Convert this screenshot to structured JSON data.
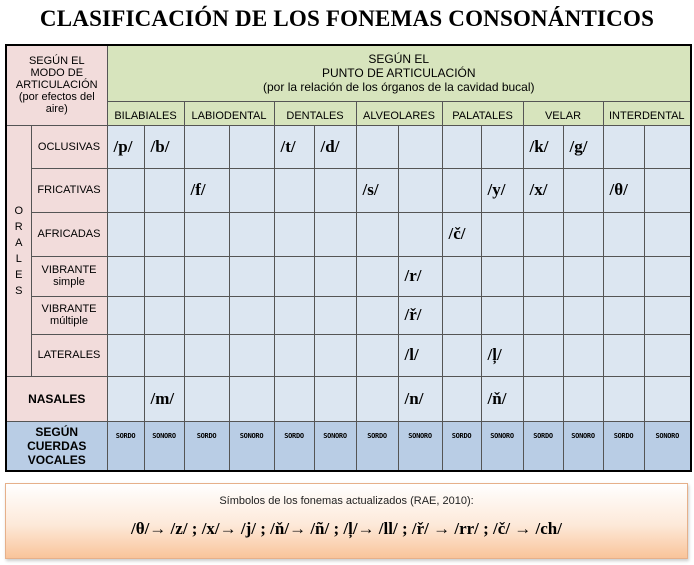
{
  "title": "CLASIFICACIÓN DE LOS FONEMAS CONSONÁNTICOS",
  "header": {
    "mode_label": [
      "SEGÚN EL",
      "MODO DE",
      "ARTICULACIÓN",
      "(por efectos del",
      "aire)"
    ],
    "place_label": [
      "SEGÚN EL",
      "PUNTO DE ARTICULACIÓN",
      "(por la relación de los órganos de la cavidad bucal)"
    ],
    "places": [
      "BILABIALES",
      "LABIODENTAL",
      "DENTALES",
      "ALVEOLARES",
      "PALATALES",
      "VELAR",
      "INTERDENTAL"
    ]
  },
  "orales_label": "O R A L E S",
  "rows": [
    {
      "label": "OCLUSIVAS",
      "cells": [
        "/p/",
        "/b/",
        "",
        "",
        "/t/",
        "/d/",
        "",
        "",
        "",
        "",
        "/k/",
        "/g/",
        "",
        ""
      ]
    },
    {
      "label": "FRICATIVAS",
      "cells": [
        "",
        "",
        "/f/",
        "",
        "",
        "",
        "/s/",
        "",
        "",
        "/y/",
        "/x/",
        "",
        "/θ/",
        ""
      ]
    },
    {
      "label": "AFRICADAS",
      "cells": [
        "",
        "",
        "",
        "",
        "",
        "",
        "",
        "",
        "/č/",
        "",
        "",
        "",
        "",
        ""
      ]
    },
    {
      "label": "VIBRANTE",
      "sublabel": "simple",
      "cells": [
        "",
        "",
        "",
        "",
        "",
        "",
        "",
        "/r/",
        "",
        "",
        "",
        "",
        "",
        ""
      ]
    },
    {
      "label": "VIBRANTE",
      "sublabel": "múltiple",
      "cells": [
        "",
        "",
        "",
        "",
        "",
        "",
        "",
        "/ř/",
        "",
        "",
        "",
        "",
        "",
        ""
      ]
    },
    {
      "label": "LATERALES",
      "cells": [
        "",
        "",
        "",
        "",
        "",
        "",
        "",
        "/l/",
        "",
        "/ļ/",
        "",
        "",
        "",
        ""
      ]
    }
  ],
  "nasales": {
    "label": "NASALES",
    "cells": [
      "",
      "/m/",
      "",
      "",
      "",
      "",
      "",
      "/n/",
      "",
      "/ň/",
      "",
      "",
      "",
      ""
    ]
  },
  "sonoridad": {
    "label": [
      "SEGÚN",
      "CUERDAS",
      "VOCALES"
    ],
    "cells": [
      "SORDO",
      "SONORO",
      "SORDO",
      "SONORO",
      "SORDO",
      "SONORO",
      "SORDO",
      "SONORO",
      "SORDO",
      "SONORO",
      "SORDO",
      "SONORO",
      "SORDO",
      "SONORO"
    ]
  },
  "colors": {
    "mode": "#f2dcdb",
    "place": "#d7e4bd",
    "cell": "#dce6f1",
    "voicing": "#b9cde5"
  },
  "footer": {
    "caption": "Símbolos de los fonemas actualizados (RAE, 2010):",
    "mappings": "/θ/→ /z/ ;  /x/→ /j/ ;  /ň/→  /ñ/ ; /ļ/→ /ll/ ;  /ř/ → /rr/ ; /č/ → /ch/"
  }
}
